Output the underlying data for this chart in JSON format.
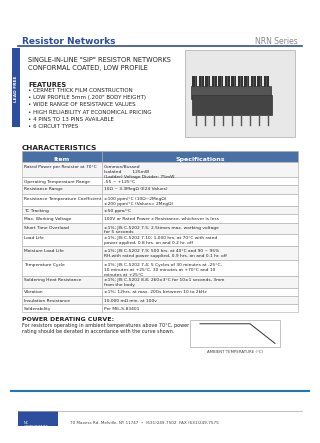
{
  "title_left": "Resistor Networks",
  "title_right": "NRN Series",
  "header_line_color": "#2d4e9e",
  "label_text": "LEAD FREE",
  "subtitle": "SINGLE-IN-LINE \"SIP\" RESISTOR NETWORKS\nCONFORMAL COATED, LOW PROFILE",
  "features_title": "FEATURES",
  "features": [
    "• CERMET THICK FILM CONSTRUCTION",
    "• LOW PROFILE 5mm (.200\" BODY HEIGHT)",
    "• WIDE RANGE OF RESISTANCE VALUES",
    "• HIGH RELIABILITY AT ECONOMICAL PRICING",
    "• 4 PINS TO 13 PINS AVAILABLE",
    "• 6 CIRCUIT TYPES"
  ],
  "char_title": "CHARACTERISTICS",
  "table_headers": [
    "Item",
    "Specifications"
  ],
  "table_rows": [
    [
      "Rated Power per Resistor at 70°C",
      "Common/Bussed\nIsolated        125mW\n(Ladder)",
      "Ladder:\nVoltage Divider: 75mW\nTerminator:"
    ],
    [
      "Operating Temperature Range",
      "-55 ~ +125°C",
      ""
    ],
    [
      "Resistance Range",
      "10Ω ~ 3.3MegΩ (E24 Values)",
      ""
    ],
    [
      "Resistance Temperature Coefficient",
      "±100 ppm/°C (10Ω~2MegΩ)\n±200 ppm/°C (Values> 2MegΩ)",
      ""
    ],
    [
      "TC Tracking",
      "±50 ppm/°C",
      ""
    ],
    [
      "Max. Working Voltage",
      "100V or Rated Power x Resistance, whichever is less",
      ""
    ],
    [
      "Short Time Overload",
      "±1%; JIS C-5202 7.5; 2.5times max. working voltage\nfor 5 seconds",
      ""
    ],
    [
      "Load Life",
      "±1%; JIS C-5202 7.10; 1,000 hrs. at 70°C with rated\npower applied, 0.8 hrs. on and 0.2 hr. off",
      ""
    ],
    [
      "Moisture Load Life",
      "±1%; JIS C-5202 7.9; 500 hrs. at 40°C and 90 ~ 95%\nRH,with rated power supplied, 0.9 hrs. on and 0.1 hr. off",
      ""
    ],
    [
      "Temperature Cycle",
      "±1%; JIS C-5202 7.4; 5 Cycles of 30 minutes at -25°C,\n10 minutes at +25°C, 30 minutes at +70°C and 10\nminutes at +25°C",
      ""
    ],
    [
      "Soldering Heat Resistance",
      "±1%; JIS C-5202 8.8; 260±3°C for 10±1 seconds, 3mm\nfrom the body",
      ""
    ],
    [
      "Vibration",
      "±1%; 12hrs. at max. 20Gs between 10 to 2kHz",
      ""
    ],
    [
      "Insulation Resistance",
      "10,000 mΩ min. at 100v",
      ""
    ],
    [
      "Solderability",
      "Per MIL-S-83401",
      ""
    ]
  ],
  "power_title": "POWER DERATING CURVE:",
  "power_text": "For resistors operating in ambient temperatures above 70°C, power\nrating should be derated in accordance with the curve shown.",
  "footer_text": "NC COMPONENTS CORPORATION",
  "footer_addr": "70 Maxess Rd. Melville, NY 11747  •  (631)249-7502  FAX (631)249-7575",
  "bg_color": "#ffffff",
  "header_bg": "#f0f0f0",
  "table_header_bg": "#4a6fa5",
  "table_header_fg": "#ffffff",
  "table_row_alt": "#f5f5f5",
  "border_color": "#aaaaaa",
  "blue_color": "#2d4e9e",
  "label_bg": "#2d4e9e",
  "label_fg": "#ffffff"
}
